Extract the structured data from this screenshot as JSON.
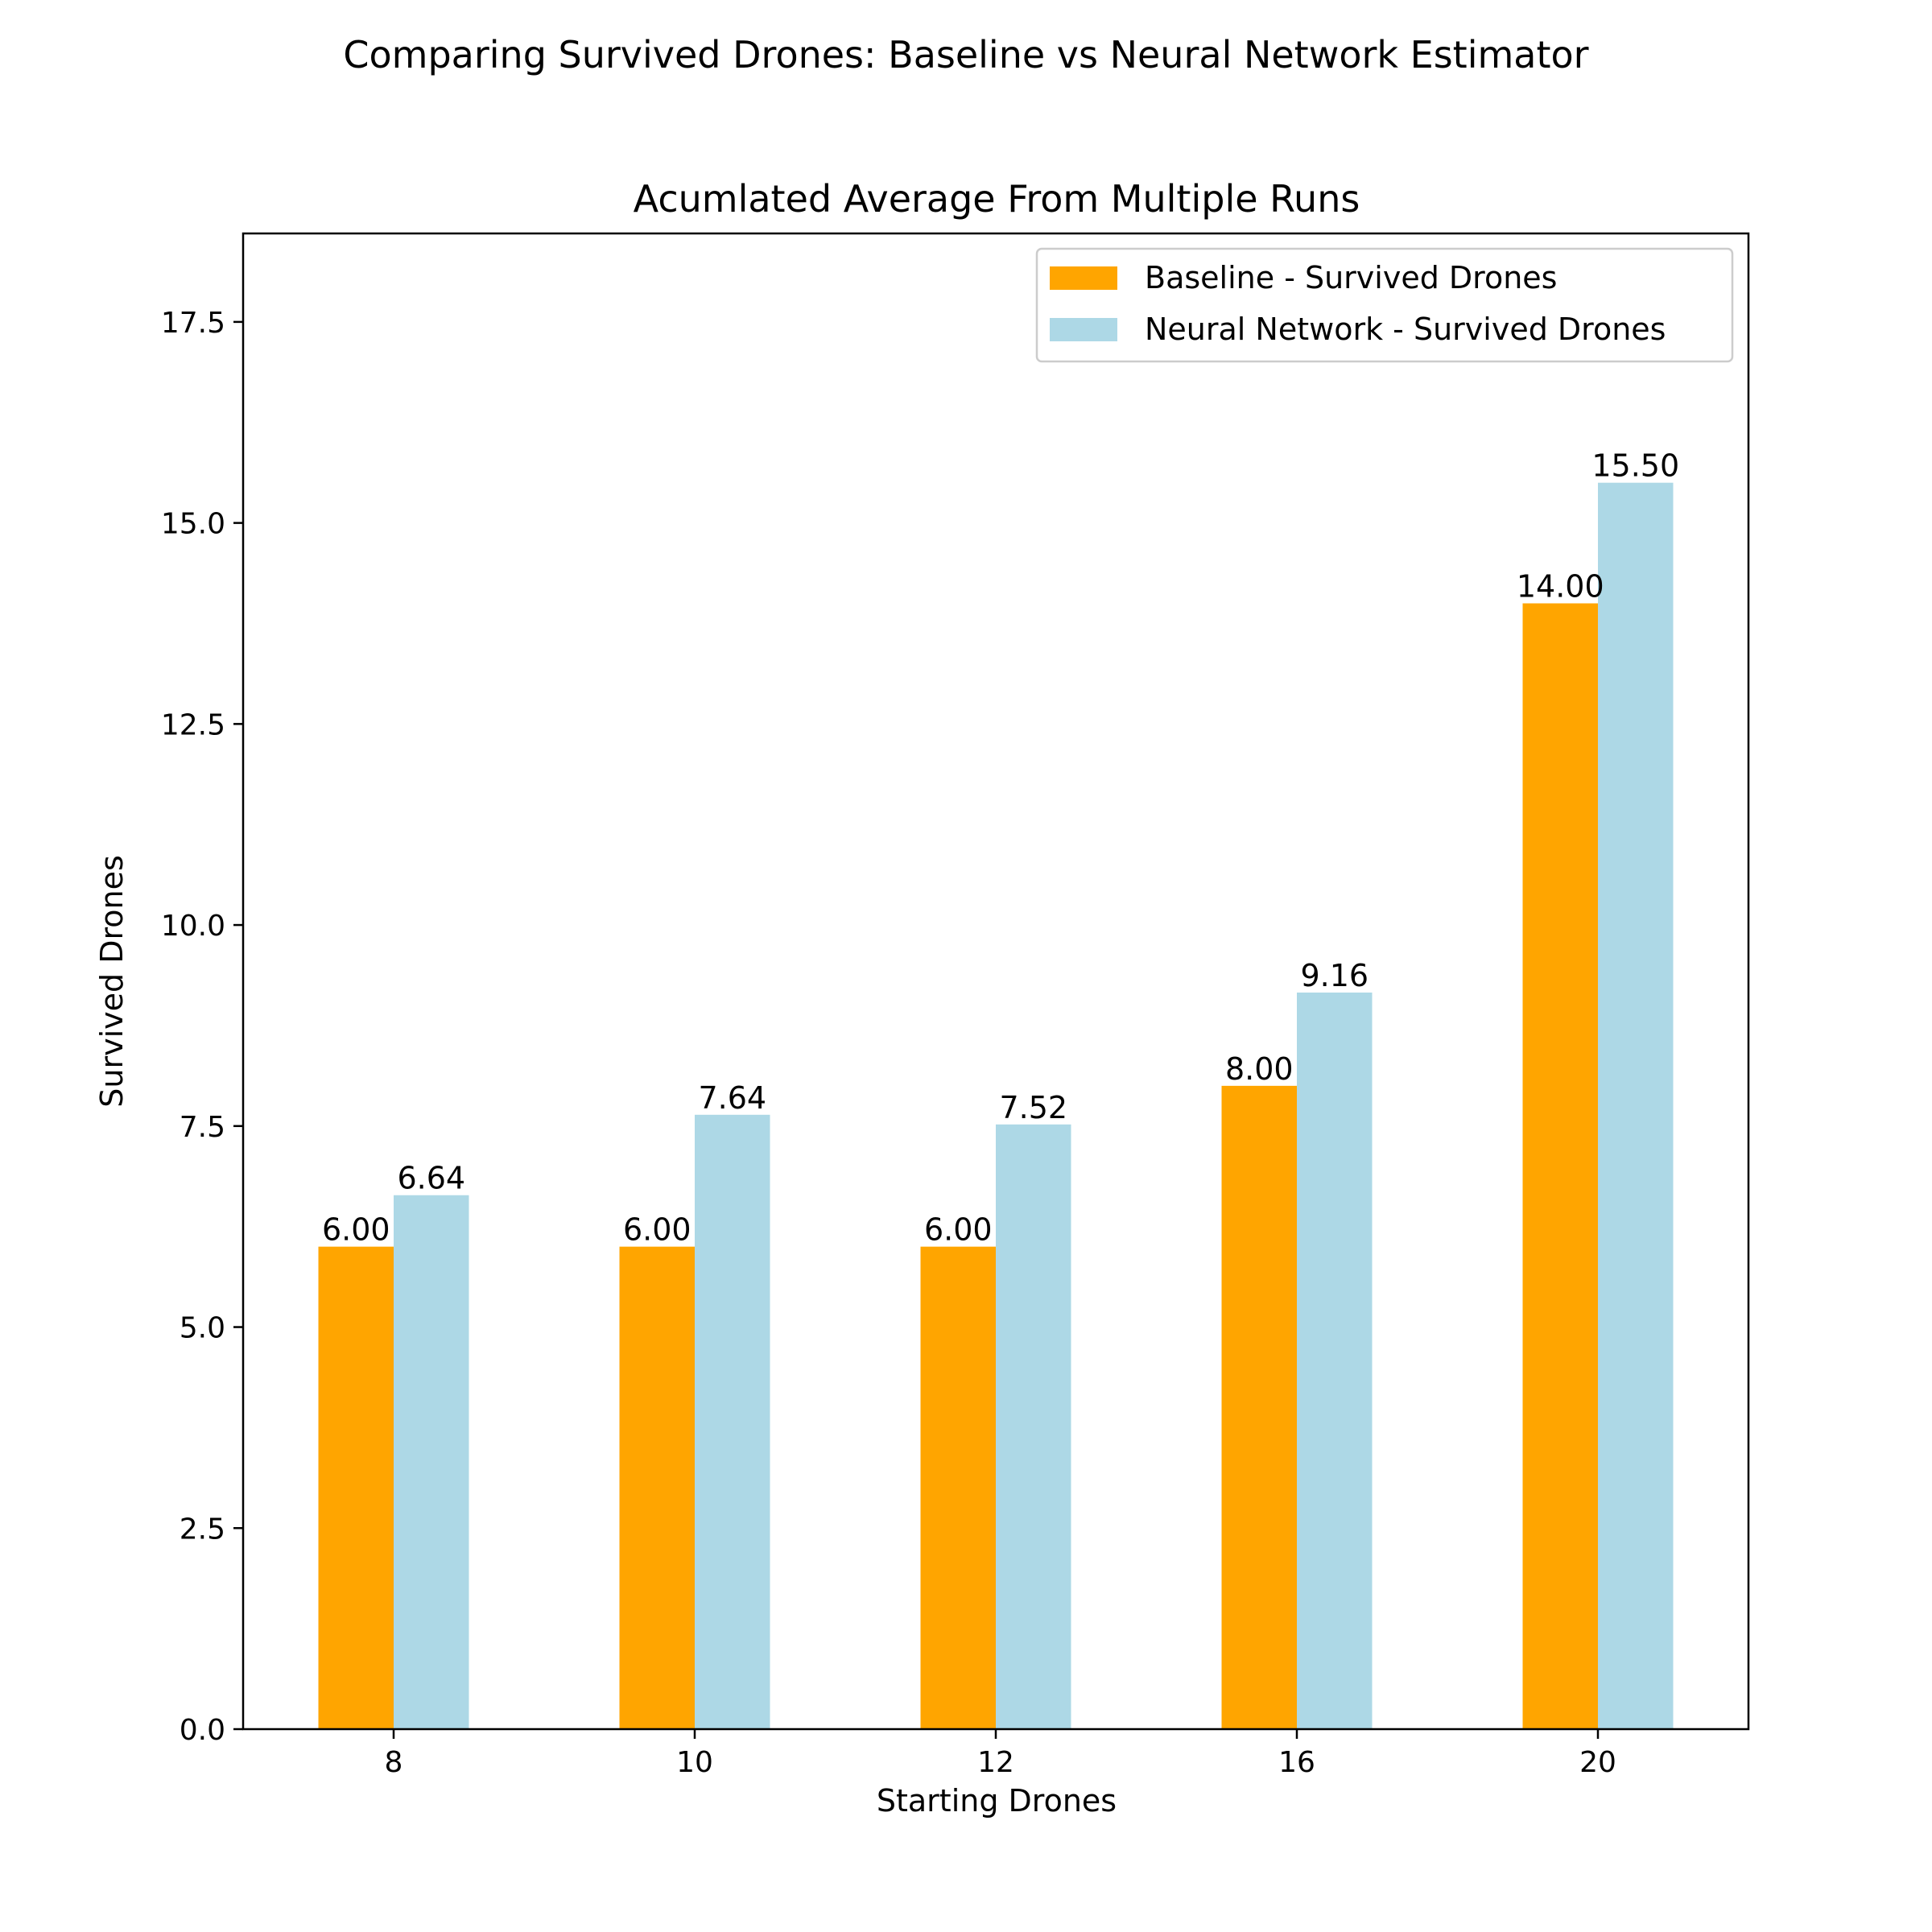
{
  "chart_data": {
    "type": "bar",
    "suptitle": "Comparing Survived Drones: Baseline vs Neural Network Estimator",
    "title": "Acumlated Average From Multiple Runs",
    "xlabel": "Starting Drones",
    "ylabel": "Survived Drones",
    "categories": [
      "8",
      "10",
      "12",
      "16",
      "20"
    ],
    "series": [
      {
        "name": "Baseline - Survived Drones",
        "color": "#ffa500",
        "values": [
          6.0,
          6.0,
          6.0,
          8.0,
          14.0
        ],
        "labels": [
          "6.00",
          "6.00",
          "6.00",
          "8.00",
          "14.00"
        ]
      },
      {
        "name": "Neural Network - Survived Drones",
        "color": "#add8e6",
        "values": [
          6.64,
          7.64,
          7.52,
          9.16,
          15.5
        ],
        "labels": [
          "6.64",
          "7.64",
          "7.52",
          "9.16",
          "15.50"
        ]
      }
    ],
    "ylim": [
      0,
      18.6
    ],
    "yticks": [
      0.0,
      2.5,
      5.0,
      7.5,
      10.0,
      12.5,
      15.0,
      17.5
    ],
    "ytick_labels": [
      "0.0",
      "2.5",
      "5.0",
      "7.5",
      "10.0",
      "12.5",
      "15.0",
      "17.5"
    ],
    "grid": false,
    "legend_position": "top-right"
  }
}
